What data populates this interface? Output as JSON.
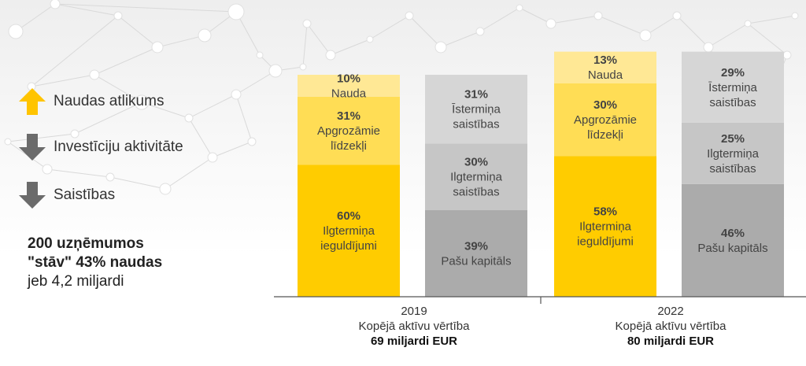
{
  "legend": [
    {
      "label": "Naudas atlikums",
      "direction": "up",
      "color": "#FFC400"
    },
    {
      "label": "Investīciju aktivitāte",
      "direction": "down",
      "color": "#6b6b6b"
    },
    {
      "label": "Saistības",
      "direction": "down",
      "color": "#6b6b6b"
    }
  ],
  "summary": {
    "line1": "200 uzņēmumos",
    "line2": "\"stāv\" 43% naudas",
    "line3": "jeb 4,2 miljardi"
  },
  "chart_data": {
    "type": "bar",
    "stacked": true,
    "groups": [
      {
        "year": "2019",
        "caption": "Kopējā aktīvu vērtība",
        "total": "69 miljardi EUR",
        "total_value": 69,
        "bars": [
          {
            "side": "assets",
            "segments": [
              {
                "pct": "60%",
                "value": 60,
                "label": [
                  "Ilgtermiņa",
                  "ieguldījumi"
                ],
                "color": "#FFCC00"
              },
              {
                "pct": "31%",
                "value": 31,
                "label": [
                  "Apgrozāmie",
                  "līdzekļi"
                ],
                "color": "#FFDD55"
              },
              {
                "pct": "10%",
                "value": 10,
                "label": [
                  "Nauda"
                ],
                "color": "#FFE895"
              }
            ]
          },
          {
            "side": "liabilities",
            "segments": [
              {
                "pct": "39%",
                "value": 39,
                "label": [
                  "Pašu kapitāls"
                ],
                "color": "#ABABAB"
              },
              {
                "pct": "30%",
                "value": 30,
                "label": [
                  "Ilgtermiņa",
                  "saistības"
                ],
                "color": "#C6C6C6"
              },
              {
                "pct": "31%",
                "value": 31,
                "label": [
                  "Īstermiņa",
                  "saistības"
                ],
                "color": "#D6D6D6"
              }
            ]
          }
        ]
      },
      {
        "year": "2022",
        "caption": "Kopējā aktīvu vērtība",
        "total": "80 miljardi EUR",
        "total_value": 80,
        "bars": [
          {
            "side": "assets",
            "segments": [
              {
                "pct": "58%",
                "value": 58,
                "label": [
                  "Ilgtermiņa",
                  "ieguldījumi"
                ],
                "color": "#FFCC00"
              },
              {
                "pct": "30%",
                "value": 30,
                "label": [
                  "Apgrozāmie",
                  "līdzekļi"
                ],
                "color": "#FFDD55"
              },
              {
                "pct": "13%",
                "value": 13,
                "label": [
                  "Nauda"
                ],
                "color": "#FFE895"
              }
            ]
          },
          {
            "side": "liabilities",
            "segments": [
              {
                "pct": "46%",
                "value": 46,
                "label": [
                  "Pašu kapitāls"
                ],
                "color": "#ABABAB"
              },
              {
                "pct": "25%",
                "value": 25,
                "label": [
                  "Ilgtermiņa",
                  "saistības"
                ],
                "color": "#C6C6C6"
              },
              {
                "pct": "29%",
                "value": 29,
                "label": [
                  "Īstermiņa",
                  "saistības"
                ],
                "color": "#D6D6D6"
              }
            ]
          }
        ]
      }
    ]
  }
}
